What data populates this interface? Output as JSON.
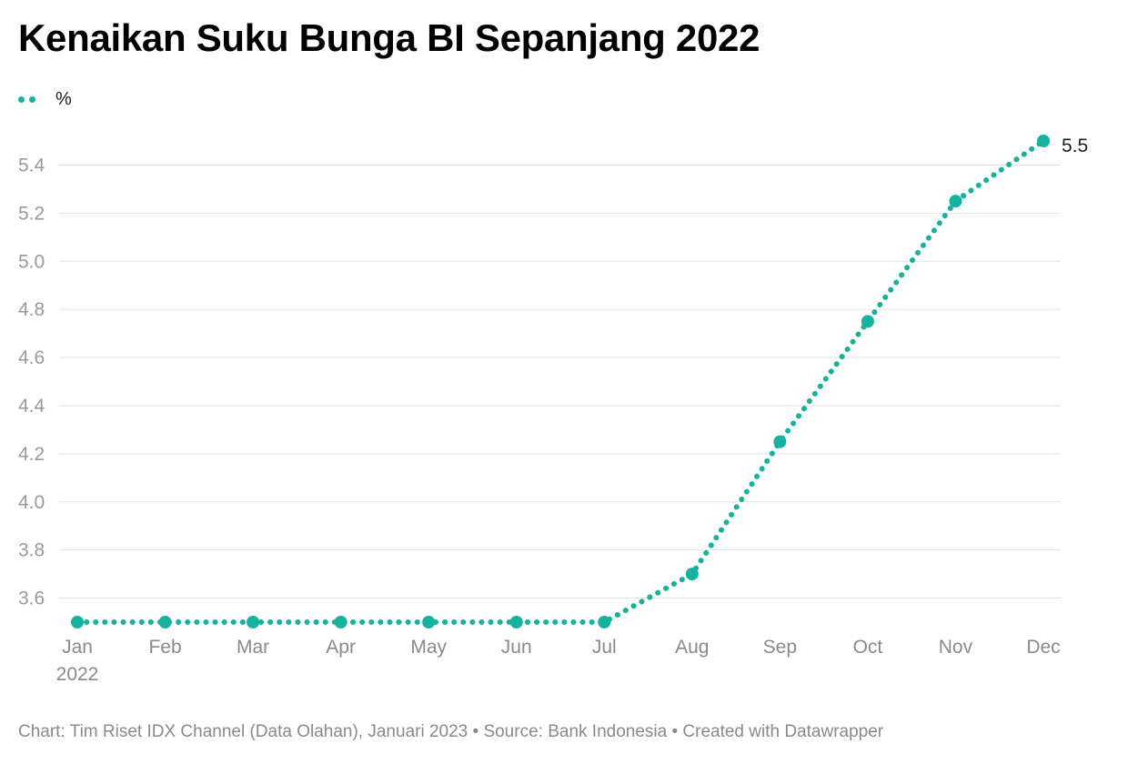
{
  "chart_data": {
    "type": "line",
    "title": "Kenaikan Suku Bunga BI Sepanjang 2022",
    "legend": "%",
    "x": [
      "Jan",
      "Feb",
      "Mar",
      "Apr",
      "May",
      "Jun",
      "Jul",
      "Aug",
      "Sep",
      "Oct",
      "Nov",
      "Dec"
    ],
    "x_sublabel": "2022",
    "series": [
      {
        "name": "%",
        "values": [
          3.5,
          3.5,
          3.5,
          3.5,
          3.5,
          3.5,
          3.5,
          3.7,
          4.25,
          4.75,
          5.25,
          5.5
        ]
      }
    ],
    "y_ticks": [
      "3.6",
      "3.8",
      "4.0",
      "4.2",
      "4.4",
      "4.6",
      "4.8",
      "5.0",
      "5.2",
      "5.4"
    ],
    "ylim": [
      3.5,
      5.5
    ],
    "grid": true,
    "end_label": "5.5",
    "line_style": "dotted",
    "color": "#15b39d"
  },
  "footer": "Chart: Tim Riset IDX Channel (Data Olahan), Januari 2023 • Source: Bank Indonesia • Created with Datawrapper"
}
